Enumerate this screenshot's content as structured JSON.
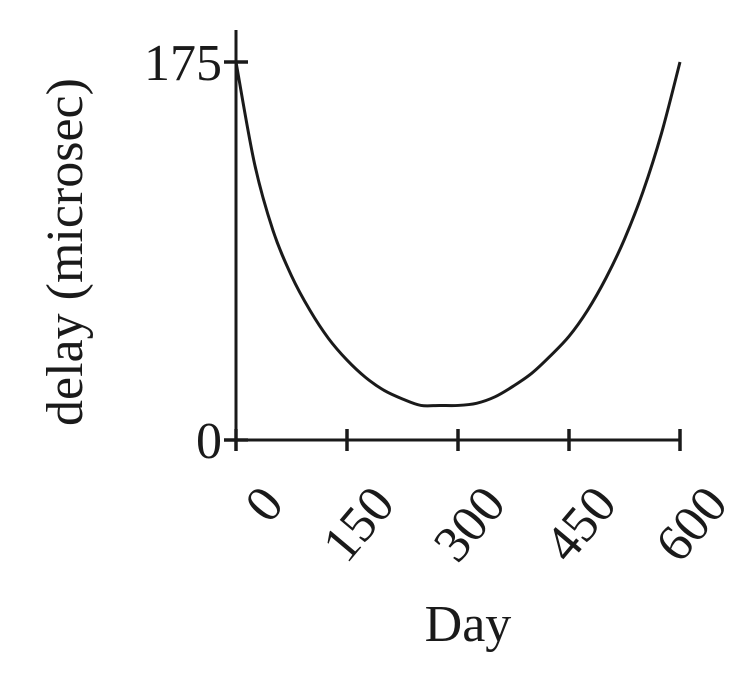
{
  "chart_data": {
    "type": "line",
    "title": "",
    "xlabel": "Day",
    "ylabel": "delay (microsec)",
    "xlim": [
      0,
      600
    ],
    "ylim": [
      0,
      175
    ],
    "xticks": [
      0,
      150,
      300,
      450,
      600
    ],
    "xtick_labels": [
      "0",
      "150",
      "300",
      "450",
      "600"
    ],
    "yticks": [
      0,
      175
    ],
    "ytick_labels": [
      "0",
      "175"
    ],
    "grid": false,
    "legend": "none",
    "series": [
      {
        "x": [
          0,
          25,
          50,
          75,
          100,
          125,
          150,
          175,
          200,
          225,
          250,
          275,
          300,
          325,
          350,
          375,
          400,
          425,
          450,
          475,
          500,
          525,
          550,
          575,
          600
        ],
        "y": [
          175,
          128,
          97,
          76,
          60,
          47,
          37,
          29,
          23,
          19,
          16,
          16,
          16,
          17,
          20,
          25,
          31,
          39,
          48,
          60,
          75,
          93,
          115,
          142,
          175
        ]
      }
    ]
  }
}
